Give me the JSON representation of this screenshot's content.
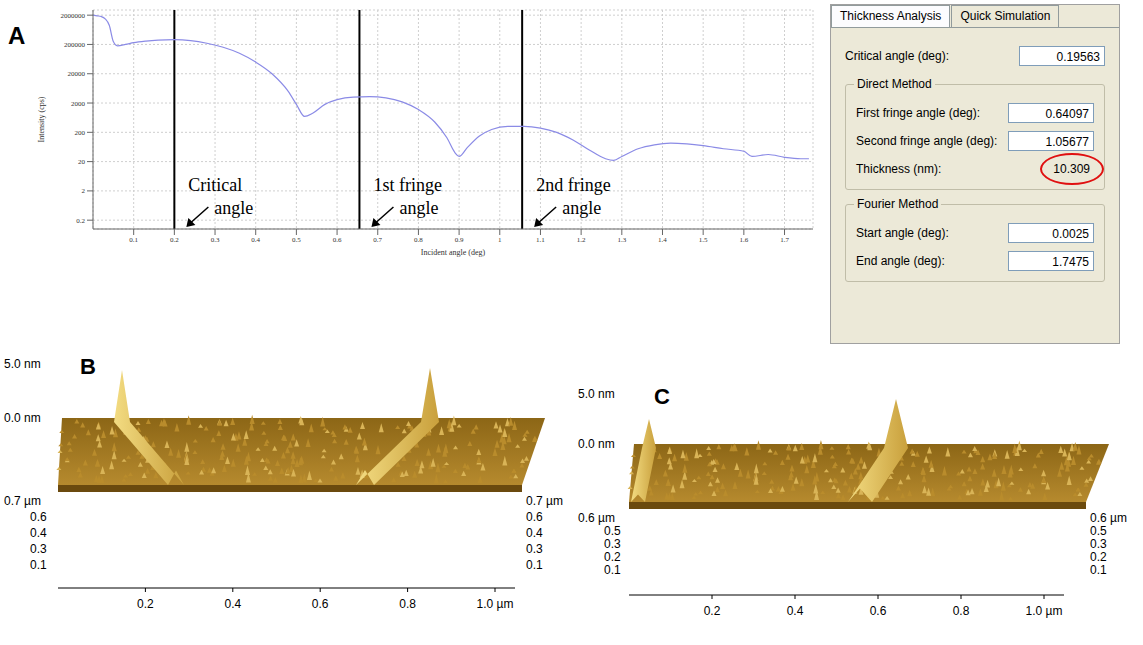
{
  "chart_data": {
    "type": "line",
    "panel_label": "A",
    "x_label": "Incident angle (deg)",
    "y_label": "Intensity (cps)",
    "color": "#8b8be6",
    "log": "y",
    "grid": true,
    "x": [
      0,
      0.01,
      0.02,
      0.03,
      0.04,
      0.05,
      0.06,
      0.08,
      0.1,
      0.13,
      0.16,
      0.2,
      0.24,
      0.28,
      0.32,
      0.36,
      0.4,
      0.44,
      0.48,
      0.5,
      0.52,
      0.54,
      0.57,
      0.6,
      0.64,
      0.68,
      0.72,
      0.76,
      0.8,
      0.84,
      0.87,
      0.89,
      0.9,
      0.92,
      0.95,
      0.98,
      1.02,
      1.06,
      1.1,
      1.14,
      1.18,
      1.22,
      1.26,
      1.28,
      1.3,
      1.34,
      1.38,
      1.42,
      1.46,
      1.5,
      1.55,
      1.6,
      1.62,
      1.66,
      1.7,
      1.74,
      1.76
    ],
    "values": [
      2000000,
      1900000,
      1800000,
      1500000,
      900000,
      250000,
      180000,
      200000,
      230000,
      260000,
      280000,
      290000,
      270000,
      220000,
      160000,
      100000,
      50000,
      20000,
      5000,
      1800,
      700,
      900,
      1800,
      2600,
      3200,
      3300,
      3000,
      2200,
      1200,
      450,
      130,
      40,
      30,
      60,
      150,
      250,
      320,
      320,
      280,
      200,
      110,
      50,
      25,
      22,
      30,
      55,
      75,
      85,
      80,
      70,
      55,
      45,
      30,
      35,
      28,
      25,
      25
    ],
    "xlim": [
      0,
      1.77
    ],
    "xticks": [
      0.1,
      0.2,
      0.3,
      0.4,
      0.5,
      0.6,
      0.7,
      0.8,
      0.9,
      1,
      1.1,
      1.2,
      1.3,
      1.4,
      1.5,
      1.6,
      1.7
    ],
    "ylim": [
      0.1,
      3000000
    ],
    "yticks": [
      0.2,
      2,
      20,
      200,
      2000,
      20000,
      200000,
      2000000
    ],
    "annotations": [
      {
        "text": "Critical angle",
        "x": 0.2
      },
      {
        "text": "1st fringe angle",
        "x": 0.655
      },
      {
        "text": "2nd fringe angle",
        "x": 1.055
      }
    ]
  },
  "software_panel": {
    "tabs": [
      "Thickness Analysis",
      "Quick Simulation"
    ],
    "critical_angle": {
      "label": "Critical angle (deg):",
      "value": 0.19563
    },
    "direct_method": {
      "title": "Direct Method",
      "first_fringe_angle": {
        "label": "First fringe angle (deg):",
        "value": 0.64097
      },
      "second_fringe_angle": {
        "label": "Second fringe angle (deg):",
        "value": 1.05677
      },
      "thickness": {
        "label": "Thickness (nm):",
        "value": 10.309
      }
    },
    "fourier_method": {
      "title": "Fourier Method",
      "start_angle": {
        "label": "Start angle (deg):",
        "value": 0.0025
      },
      "end_angle": {
        "label": "End angle (deg):",
        "value": 1.7475
      }
    }
  },
  "afm_panels": [
    {
      "panel_label": "B",
      "z_labels": [
        "5.0 nm",
        "0.0 nm"
      ],
      "depth_labels_left": [
        "0.7 µm",
        "0.6",
        "0.4",
        "0.3",
        "0.1"
      ],
      "depth_labels_right": [
        "0.7 µm",
        "0.6",
        "0.4",
        "0.3",
        "0.1"
      ],
      "x_labels": [
        "0.2",
        "0.4",
        "0.6",
        "0.8",
        "1.0 µm"
      ]
    },
    {
      "panel_label": "C",
      "z_labels": [
        "5.0 nm",
        "0.0 nm"
      ],
      "depth_labels_left": [
        "0.6 µm",
        "0.5",
        "0.3",
        "0.2",
        "0.1"
      ],
      "depth_labels_right": [
        "0.6 µm",
        "0.5",
        "0.3",
        "0.2",
        "0.1"
      ],
      "x_labels": [
        "0.2",
        "0.4",
        "0.6",
        "0.8",
        "1.0 µm"
      ]
    }
  ]
}
